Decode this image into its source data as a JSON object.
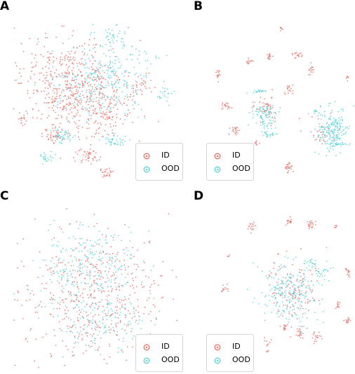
{
  "panels": [
    {
      "letter": "A",
      "legend": [
        "ID",
        "OOD"
      ]
    },
    {
      "letter": "B",
      "legend": [
        "ID",
        "OOD"
      ]
    },
    {
      "letter": "C",
      "legend": [
        "ID",
        "OOD"
      ]
    },
    {
      "letter": "D",
      "legend": [
        "ID",
        "OOD"
      ]
    }
  ],
  "colors": {
    "id": "#e8746b",
    "ood": "#5fd3dc"
  },
  "chart_data": [
    {
      "type": "scatter",
      "title": "",
      "xlabel": "",
      "ylabel": "",
      "legend_placement": "bottom-right",
      "grid": false,
      "series": [
        {
          "name": "ID",
          "color": "#e8746b",
          "clusters": [
            [
              0.35,
              0.4,
              0.3,
              0.28,
              520
            ],
            [
              0.55,
              0.55,
              0.2,
              0.2,
              120
            ],
            [
              0.25,
              0.72,
              0.08,
              0.05,
              40
            ],
            [
              0.45,
              0.85,
              0.06,
              0.05,
              45
            ],
            [
              0.55,
              0.95,
              0.05,
              0.04,
              25
            ],
            [
              0.05,
              0.62,
              0.03,
              0.03,
              15
            ],
            [
              0.75,
              0.4,
              0.08,
              0.08,
              30
            ]
          ]
        },
        {
          "name": "OOD",
          "color": "#5fd3dc",
          "clusters": [
            [
              0.55,
              0.35,
              0.28,
              0.25,
              300
            ],
            [
              0.3,
              0.72,
              0.07,
              0.04,
              45
            ],
            [
              0.6,
              0.75,
              0.07,
              0.04,
              45
            ],
            [
              0.2,
              0.85,
              0.04,
              0.04,
              25
            ],
            [
              0.9,
              0.45,
              0.05,
              0.06,
              20
            ],
            [
              0.6,
              0.1,
              0.08,
              0.06,
              30
            ]
          ]
        }
      ]
    },
    {
      "type": "scatter",
      "title": "",
      "xlabel": "",
      "ylabel": "",
      "legend_placement": "bottom-left",
      "grid": false,
      "series": [
        {
          "name": "ID",
          "color": "#e8746b",
          "clusters": [
            [
              0.4,
              0.55,
              0.07,
              0.08,
              50
            ],
            [
              0.5,
              0.08,
              0.02,
              0.02,
              6
            ],
            [
              0.28,
              0.28,
              0.02,
              0.02,
              12
            ],
            [
              0.07,
              0.35,
              0.02,
              0.04,
              14
            ],
            [
              0.42,
              0.25,
              0.02,
              0.03,
              14
            ],
            [
              0.61,
              0.24,
              0.03,
              0.02,
              16
            ],
            [
              0.7,
              0.32,
              0.02,
              0.03,
              14
            ],
            [
              0.12,
              0.55,
              0.04,
              0.02,
              18
            ],
            [
              0.19,
              0.7,
              0.03,
              0.03,
              20
            ],
            [
              0.55,
              0.45,
              0.03,
              0.03,
              16
            ],
            [
              0.95,
              0.38,
              0.01,
              0.02,
              6
            ],
            [
              0.55,
              0.92,
              0.03,
              0.04,
              25
            ],
            [
              0.33,
              0.78,
              0.02,
              0.02,
              8
            ],
            [
              0.75,
              0.7,
              0.1,
              0.1,
              30
            ]
          ]
        },
        {
          "name": "OOD",
          "color": "#5fd3dc",
          "clusters": [
            [
              0.38,
              0.6,
              0.08,
              0.08,
              90
            ],
            [
              0.85,
              0.7,
              0.1,
              0.14,
              200
            ],
            [
              0.35,
              0.46,
              0.05,
              0.01,
              20
            ],
            [
              0.42,
              0.72,
              0.06,
              0.02,
              25
            ],
            [
              0.9,
              0.78,
              0.05,
              0.01,
              20
            ],
            [
              0.73,
              0.58,
              0.01,
              0.02,
              8
            ]
          ]
        }
      ]
    },
    {
      "type": "scatter",
      "title": "",
      "xlabel": "",
      "ylabel": "",
      "legend_placement": "bottom-right",
      "grid": false,
      "series": [
        {
          "name": "ID",
          "color": "#e8746b",
          "clusters": [
            [
              0.45,
              0.55,
              0.42,
              0.4,
              480
            ]
          ]
        },
        {
          "name": "OOD",
          "color": "#5fd3dc",
          "clusters": [
            [
              0.45,
              0.4,
              0.3,
              0.3,
              280
            ],
            [
              0.55,
              0.7,
              0.25,
              0.2,
              120
            ]
          ]
        }
      ]
    },
    {
      "type": "scatter",
      "title": "",
      "xlabel": "",
      "ylabel": "",
      "legend_placement": "bottom-left",
      "grid": false,
      "series": [
        {
          "name": "ID",
          "color": "#e8746b",
          "clusters": [
            [
              0.6,
              0.5,
              0.18,
              0.18,
              120
            ],
            [
              0.3,
              0.12,
              0.03,
              0.03,
              16
            ],
            [
              0.55,
              0.08,
              0.03,
              0.03,
              16
            ],
            [
              0.7,
              0.1,
              0.03,
              0.04,
              22
            ],
            [
              0.87,
              0.12,
              0.01,
              0.02,
              6
            ],
            [
              0.14,
              0.3,
              0.01,
              0.01,
              4
            ],
            [
              0.12,
              0.5,
              0.03,
              0.03,
              12
            ],
            [
              0.95,
              0.4,
              0.02,
              0.03,
              14
            ],
            [
              0.88,
              0.6,
              0.02,
              0.02,
              12
            ],
            [
              0.95,
              0.7,
              0.02,
              0.02,
              14
            ],
            [
              0.52,
              0.75,
              0.02,
              0.03,
              14
            ],
            [
              0.63,
              0.78,
              0.03,
              0.04,
              20
            ],
            [
              0.73,
              0.8,
              0.03,
              0.03,
              18
            ],
            [
              0.4,
              0.85,
              0.02,
              0.04,
              12
            ]
          ]
        },
        {
          "name": "OOD",
          "color": "#5fd3dc",
          "clusters": [
            [
              0.55,
              0.52,
              0.2,
              0.18,
              220
            ],
            [
              0.7,
              0.35,
              0.05,
              0.04,
              25
            ],
            [
              0.78,
              0.4,
              0.06,
              0.04,
              25
            ]
          ]
        }
      ]
    }
  ]
}
